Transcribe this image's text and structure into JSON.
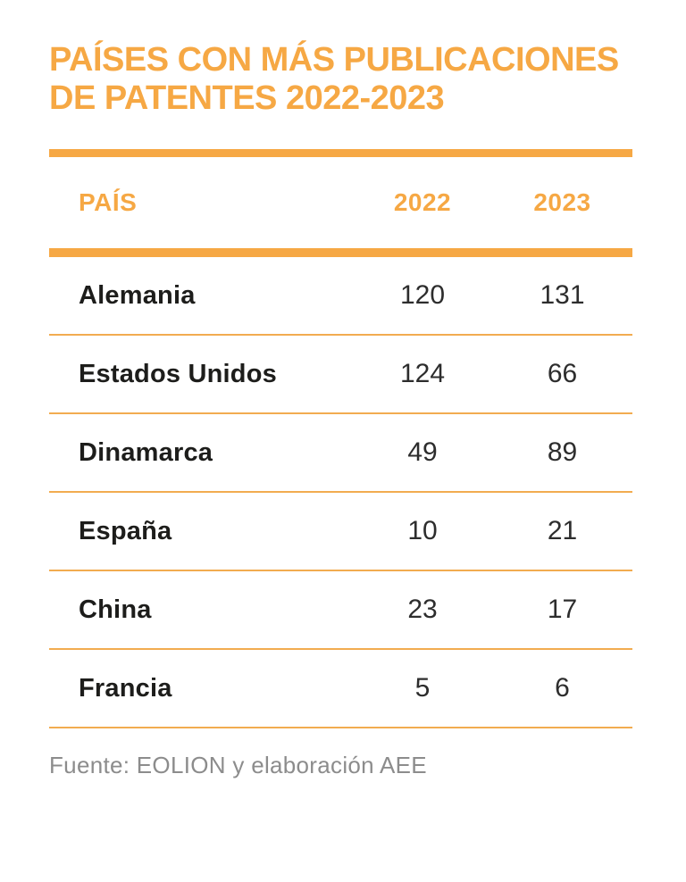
{
  "header": {
    "title_line1": "PAÍSES CON MÁS PUBLICACIONES",
    "title_line2": "DE PATENTES 2022-2023"
  },
  "chart_data": {
    "type": "table",
    "title": "PAÍSES CON MÁS PUBLICACIONES DE PATENTES 2022-2023",
    "columns": [
      "PAÍS",
      "2022",
      "2023"
    ],
    "rows": [
      [
        "Alemania",
        120,
        131
      ],
      [
        "Estados Unidos",
        124,
        66
      ],
      [
        "Dinamarca",
        49,
        89
      ],
      [
        "España",
        10,
        21
      ],
      [
        "China",
        23,
        17
      ],
      [
        "Francia",
        5,
        6
      ]
    ],
    "source": "Fuente: EOLION y elaboración AEE"
  },
  "colors": {
    "accent": "#F6A844",
    "separator": "#F2AC50",
    "country_text": "#1D1D1B",
    "number_text": "#2D2D2D",
    "source_text": "#8C8C8C"
  }
}
